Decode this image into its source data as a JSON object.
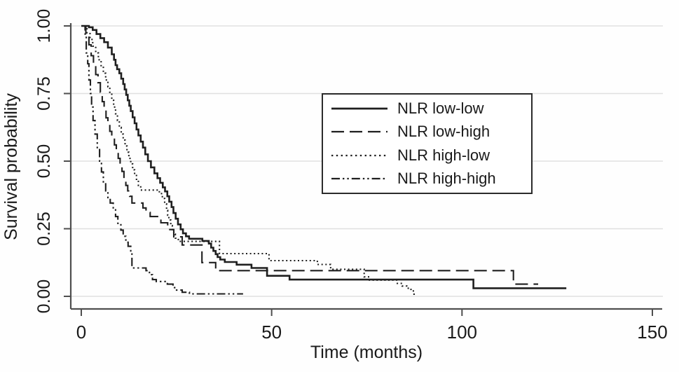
{
  "figure_type": "kaplan-meier-survival-plot",
  "chart_data": {
    "type": "line",
    "subtype": "step-survival-curves",
    "title": "",
    "xlabel": "Time (months)",
    "ylabel": "Survival probability",
    "xlim": [
      0,
      150
    ],
    "ylim": [
      0,
      1
    ],
    "grid": "horizontal",
    "legend_position": "upper-right-inside",
    "line_color": "#1f1f1f",
    "grid_color": "#e0e0e0",
    "axis_color": "#4f4f4f",
    "text_color": "#1a1a1a",
    "xticks": [
      {
        "value": 0,
        "label": "0"
      },
      {
        "value": 50,
        "label": "50"
      },
      {
        "value": 100,
        "label": "100"
      },
      {
        "value": 150,
        "label": "150"
      }
    ],
    "yticks": [
      {
        "value": 0,
        "label": "0.00"
      },
      {
        "value": 0.25,
        "label": "0.25"
      },
      {
        "value": 0.5,
        "label": "0.50"
      },
      {
        "value": 0.75,
        "label": "0.75"
      },
      {
        "value": 1,
        "label": "1.00"
      }
    ],
    "series": [
      {
        "name": "NLR low-low",
        "line_style": "solid",
        "points": [
          [
            0,
            1
          ],
          [
            2,
            0.995
          ],
          [
            3,
            0.985
          ],
          [
            4,
            0.97
          ],
          [
            5,
            0.955
          ],
          [
            6,
            0.94
          ],
          [
            7,
            0.92
          ],
          [
            8,
            0.895
          ],
          [
            8.6,
            0.875
          ],
          [
            9,
            0.855
          ],
          [
            9.4,
            0.84
          ],
          [
            10,
            0.825
          ],
          [
            10.5,
            0.805
          ],
          [
            11,
            0.785
          ],
          [
            11.4,
            0.765
          ],
          [
            11.8,
            0.745
          ],
          [
            12.2,
            0.725
          ],
          [
            12.6,
            0.705
          ],
          [
            13,
            0.685
          ],
          [
            13.5,
            0.662
          ],
          [
            14,
            0.64
          ],
          [
            14.5,
            0.617
          ],
          [
            15,
            0.595
          ],
          [
            15.6,
            0.572
          ],
          [
            16.2,
            0.55
          ],
          [
            16.8,
            0.525
          ],
          [
            17.5,
            0.5
          ],
          [
            18.3,
            0.477
          ],
          [
            19.2,
            0.455
          ],
          [
            20,
            0.437
          ],
          [
            20.7,
            0.42
          ],
          [
            21.4,
            0.403
          ],
          [
            22,
            0.388
          ],
          [
            22.6,
            0.37
          ],
          [
            23.1,
            0.35
          ],
          [
            23.7,
            0.33
          ],
          [
            24.2,
            0.308
          ],
          [
            24.8,
            0.287
          ],
          [
            25.4,
            0.266
          ],
          [
            26.1,
            0.248
          ],
          [
            26.7,
            0.233
          ],
          [
            27.5,
            0.222
          ],
          [
            28.3,
            0.213
          ],
          [
            31.8,
            0.205
          ],
          [
            33.5,
            0.195
          ],
          [
            34.1,
            0.18
          ],
          [
            34.7,
            0.168
          ],
          [
            35.3,
            0.156
          ],
          [
            35.8,
            0.145
          ],
          [
            36.5,
            0.136
          ],
          [
            37.7,
            0.127
          ],
          [
            40.8,
            0.117
          ],
          [
            44.7,
            0.105
          ],
          [
            48.8,
            0.076
          ],
          [
            54.7,
            0.062
          ],
          [
            103,
            0.03
          ],
          [
            127.4,
            0.03
          ]
        ]
      },
      {
        "name": "NLR low-high",
        "line_style": "dashed",
        "points": [
          [
            0,
            1
          ],
          [
            1.2,
            0.97
          ],
          [
            2,
            0.93
          ],
          [
            2.6,
            0.89
          ],
          [
            3.2,
            0.855
          ],
          [
            3.8,
            0.82
          ],
          [
            4.4,
            0.79
          ],
          [
            5,
            0.755
          ],
          [
            5.5,
            0.72
          ],
          [
            6,
            0.69
          ],
          [
            6.5,
            0.66
          ],
          [
            7,
            0.635
          ],
          [
            7.5,
            0.61
          ],
          [
            8,
            0.585
          ],
          [
            8.7,
            0.56
          ],
          [
            9.2,
            0.535
          ],
          [
            9.7,
            0.51
          ],
          [
            10.2,
            0.487
          ],
          [
            10.7,
            0.462
          ],
          [
            11.2,
            0.435
          ],
          [
            11.7,
            0.41
          ],
          [
            12.2,
            0.39
          ],
          [
            12.7,
            0.37
          ],
          [
            13.3,
            0.345
          ],
          [
            16.2,
            0.327
          ],
          [
            17,
            0.31
          ],
          [
            18.1,
            0.295
          ],
          [
            20.9,
            0.272
          ],
          [
            22.7,
            0.247
          ],
          [
            24.3,
            0.22
          ],
          [
            26.5,
            0.19
          ],
          [
            31.7,
            0.125
          ],
          [
            35.3,
            0.095
          ],
          [
            113.5,
            0.045
          ],
          [
            120,
            0.045
          ]
        ]
      },
      {
        "name": "NLR high-low",
        "line_style": "dotted",
        "points": [
          [
            0,
            1
          ],
          [
            1.5,
            0.975
          ],
          [
            2.3,
            0.95
          ],
          [
            3,
            0.925
          ],
          [
            3.8,
            0.9
          ],
          [
            4.5,
            0.875
          ],
          [
            5.2,
            0.85
          ],
          [
            5.8,
            0.825
          ],
          [
            6.4,
            0.8
          ],
          [
            7,
            0.775
          ],
          [
            7.5,
            0.75
          ],
          [
            8,
            0.725
          ],
          [
            8.5,
            0.7
          ],
          [
            9,
            0.675
          ],
          [
            9.5,
            0.65
          ],
          [
            10,
            0.625
          ],
          [
            10.5,
            0.6
          ],
          [
            11,
            0.578
          ],
          [
            11.5,
            0.556
          ],
          [
            12,
            0.533
          ],
          [
            12.5,
            0.51
          ],
          [
            13,
            0.49
          ],
          [
            13.5,
            0.468
          ],
          [
            14,
            0.447
          ],
          [
            14.5,
            0.428
          ],
          [
            15,
            0.41
          ],
          [
            15.6,
            0.393
          ],
          [
            20.5,
            0.38
          ],
          [
            21.3,
            0.362
          ],
          [
            21.9,
            0.342
          ],
          [
            22.4,
            0.318
          ],
          [
            22.7,
            0.3
          ],
          [
            23,
            0.282
          ],
          [
            23.5,
            0.262
          ],
          [
            23.9,
            0.247
          ],
          [
            24.3,
            0.23
          ],
          [
            24.7,
            0.215
          ],
          [
            25.5,
            0.203
          ],
          [
            36.3,
            0.158
          ],
          [
            49.3,
            0.132
          ],
          [
            62,
            0.118
          ],
          [
            65.5,
            0.1
          ],
          [
            74.3,
            0.072
          ],
          [
            75.7,
            0.06
          ],
          [
            83,
            0.048
          ],
          [
            84.3,
            0.038
          ],
          [
            85.5,
            0.03
          ],
          [
            86.6,
            0.02
          ],
          [
            87.4,
            0.008
          ],
          [
            88,
            0.008
          ]
        ]
      },
      {
        "name": "NLR high-high",
        "line_style": "dash-dot-dot",
        "points": [
          [
            0,
            1
          ],
          [
            1,
            0.97
          ],
          [
            1.3,
            0.9
          ],
          [
            1.7,
            0.86
          ],
          [
            2,
            0.8
          ],
          [
            2.4,
            0.75
          ],
          [
            2.7,
            0.7
          ],
          [
            3.1,
            0.65
          ],
          [
            3.6,
            0.6
          ],
          [
            4.2,
            0.55
          ],
          [
            4.8,
            0.5
          ],
          [
            5.3,
            0.46
          ],
          [
            5.8,
            0.42
          ],
          [
            6.4,
            0.39
          ],
          [
            7,
            0.365
          ],
          [
            7.6,
            0.345
          ],
          [
            8.4,
            0.32
          ],
          [
            9,
            0.295
          ],
          [
            9.6,
            0.27
          ],
          [
            10.4,
            0.245
          ],
          [
            11,
            0.222
          ],
          [
            11.7,
            0.2
          ],
          [
            12.3,
            0.185
          ],
          [
            13,
            0.168
          ],
          [
            13.3,
            0.105
          ],
          [
            17,
            0.095
          ],
          [
            17.9,
            0.08
          ],
          [
            18.7,
            0.062
          ],
          [
            19.7,
            0.055
          ],
          [
            22.6,
            0.045
          ],
          [
            24.1,
            0.032
          ],
          [
            24.8,
            0.023
          ],
          [
            26.5,
            0.015
          ],
          [
            28.4,
            0.009
          ],
          [
            42.5,
            0.009
          ]
        ]
      }
    ]
  }
}
